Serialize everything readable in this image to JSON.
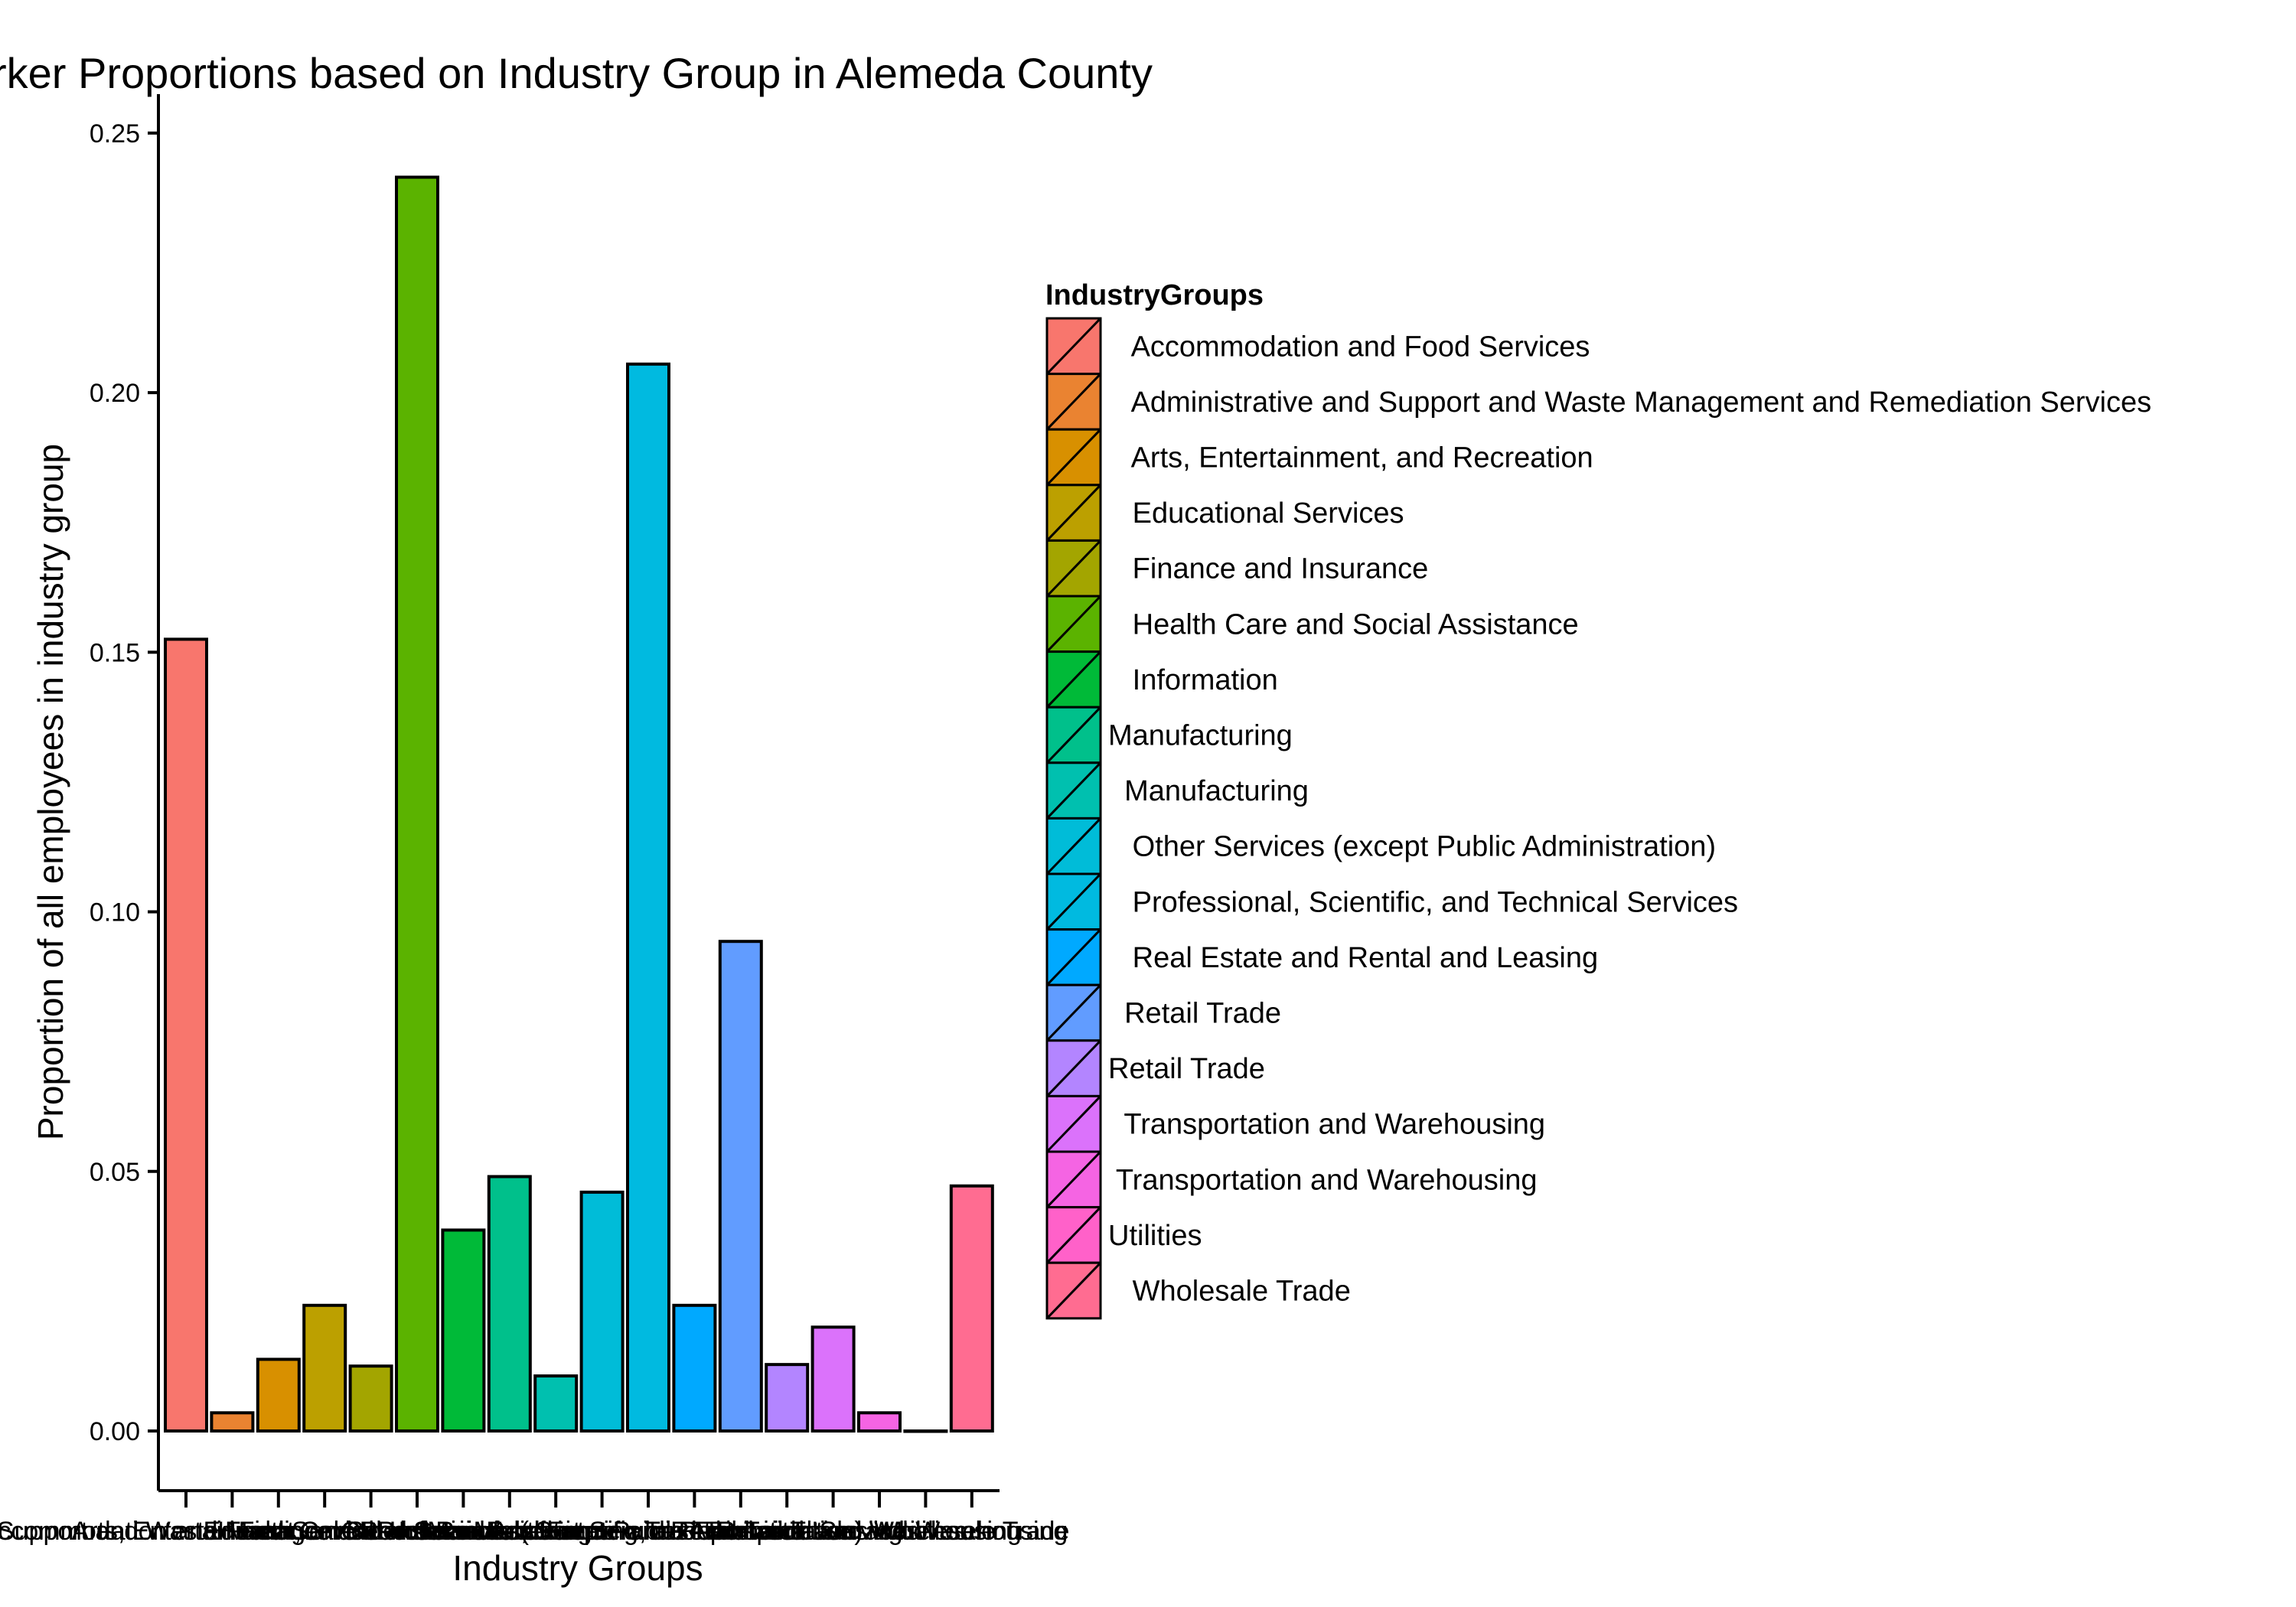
{
  "chart_data": {
    "type": "bar",
    "title": "rker Proportions based on Industry Group in Alemeda County",
    "xlabel": "Industry Groups",
    "ylabel": "Proportion of all employees in industry group",
    "ylim": [
      -0.0115,
      0.2575
    ],
    "yticks": [
      "0.00",
      "0.05",
      "0.10",
      "0.15",
      "0.20",
      "0.25"
    ],
    "grid": false,
    "legend_position": "right",
    "legend_title": "IndustryGroups",
    "categories": [
      "Accommodation and Food Services",
      "Administrative and Support and Waste Management and Remediation Services",
      "Arts, Entertainment, and Recreation",
      "Educational Services",
      "Finance and Insurance",
      "Health Care and Social Assistance",
      "Information",
      "Manufacturing",
      "  Manufacturing",
      "Other Services (except Public Administration)",
      "Professional, Scientific, and Technical Services",
      "Real Estate and Rental and Leasing",
      "Retail Trade",
      "Retail Trade",
      "Transportation and Warehousing",
      "Transportation and Warehousing",
      "Utilities",
      "Wholesale Trade"
    ],
    "legend_labels": [
      "   Accommodation and Food Services",
      "   Administrative and Support and Waste Management and Remediation Services",
      "   Arts, Entertainment, and Recreation",
      "   Educational Services",
      "   Finance and Insurance",
      "   Health Care and Social Assistance",
      "   Information",
      "Manufacturing",
      "  Manufacturing",
      "   Other Services (except Public Administration)",
      "   Professional, Scientific, and Technical Services",
      "   Real Estate and Rental and Leasing",
      "  Retail Trade",
      "Retail Trade",
      "  Transportation and Warehousing",
      " Transportation and Warehousing",
      "Utilities",
      "   Wholesale Trade"
    ],
    "values": [
      0.1525,
      0.0035,
      0.0138,
      0.0242,
      0.0125,
      0.2415,
      0.0387,
      0.049,
      0.0106,
      0.046,
      0.2055,
      0.0242,
      0.0943,
      0.0128,
      0.02,
      0.0035,
      0.0,
      0.0472
    ],
    "colors": [
      "#F8766D",
      "#EA8331",
      "#D89000",
      "#BCA000",
      "#A3A500",
      "#5BB300",
      "#00BA38",
      "#00C08B",
      "#00C0AF",
      "#00BCD8",
      "#00BAE0",
      "#00A9FF",
      "#619CFF",
      "#B385FF",
      "#DB72FB",
      "#F564E3",
      "#FF61C9",
      "#FF6C91"
    ]
  }
}
